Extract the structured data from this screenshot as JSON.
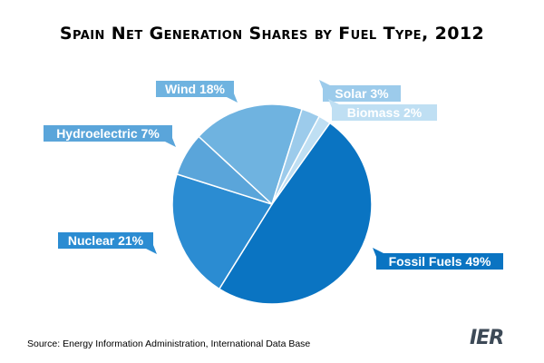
{
  "colors": {
    "Fossil Fuels": "#0a74c2",
    "Nuclear": "#2b8cd2",
    "Hydroelectric": "#5aa5da",
    "Wind": "#6fb3e0",
    "Solar": "#9ccbeb",
    "Biomass": "#bfdff3"
  },
  "chart_data": {
    "type": "pie",
    "title": "Spain Net Generation Shares by Fuel Type, 2012",
    "slices": [
      {
        "label": "Fossil Fuels",
        "value": 49,
        "display": "Fossil Fuels 49%"
      },
      {
        "label": "Nuclear",
        "value": 21,
        "display": "Nuclear 21%"
      },
      {
        "label": "Hydroelectric",
        "value": 7,
        "display": "Hydroelectric 7%"
      },
      {
        "label": "Wind",
        "value": 18,
        "display": "Wind 18%"
      },
      {
        "label": "Solar",
        "value": 3,
        "display": "Solar 3%"
      },
      {
        "label": "Biomass",
        "value": 2,
        "display": "Biomass 2%"
      }
    ]
  },
  "source": "Source: Energy Information Administration, International Data Base",
  "logo_text": "IER"
}
